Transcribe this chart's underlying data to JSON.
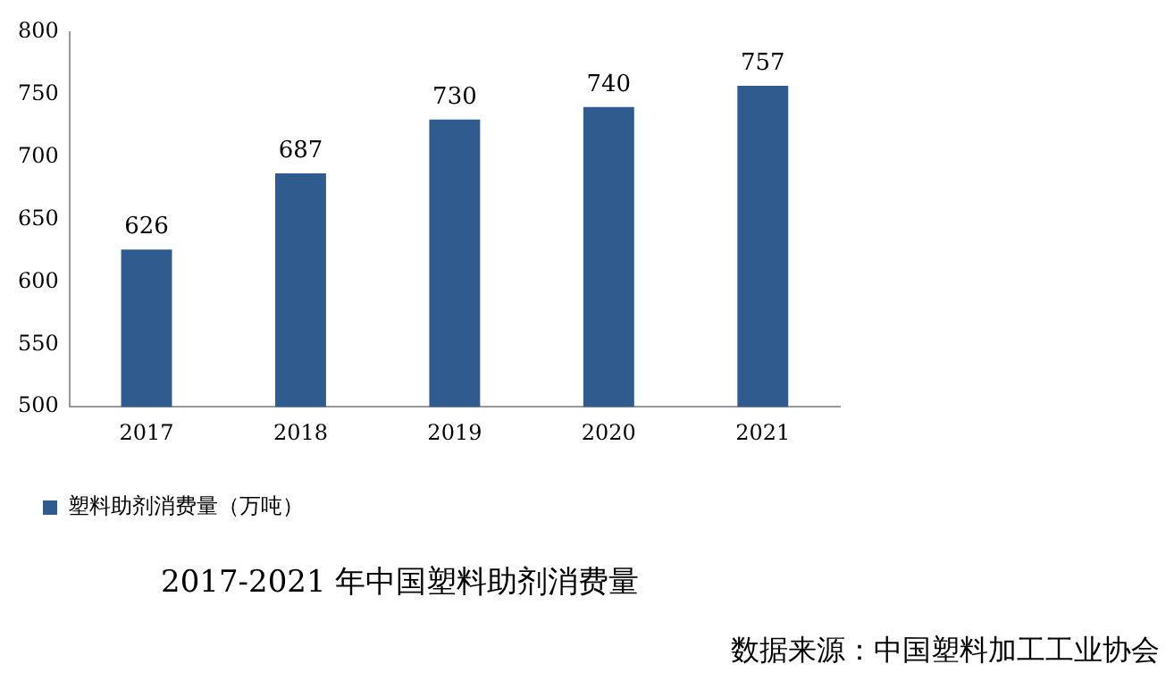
{
  "chart_data": {
    "type": "bar",
    "title": "2017-2021 年中国塑料助剂消费量",
    "categories": [
      "2017",
      "2018",
      "2019",
      "2020",
      "2021"
    ],
    "series": [
      {
        "name": "塑料助剂消费量（万吨）",
        "color": "#2f5b8e",
        "values": [
          626,
          687,
          730,
          740,
          757
        ]
      }
    ],
    "ylim": [
      500,
      800
    ],
    "yticks": [
      500,
      550,
      600,
      650,
      700,
      750,
      800
    ],
    "grid": false,
    "legend": "bottom",
    "data_labels": true,
    "annotations": [
      "数据来源：中国塑料加工工业协会"
    ]
  }
}
